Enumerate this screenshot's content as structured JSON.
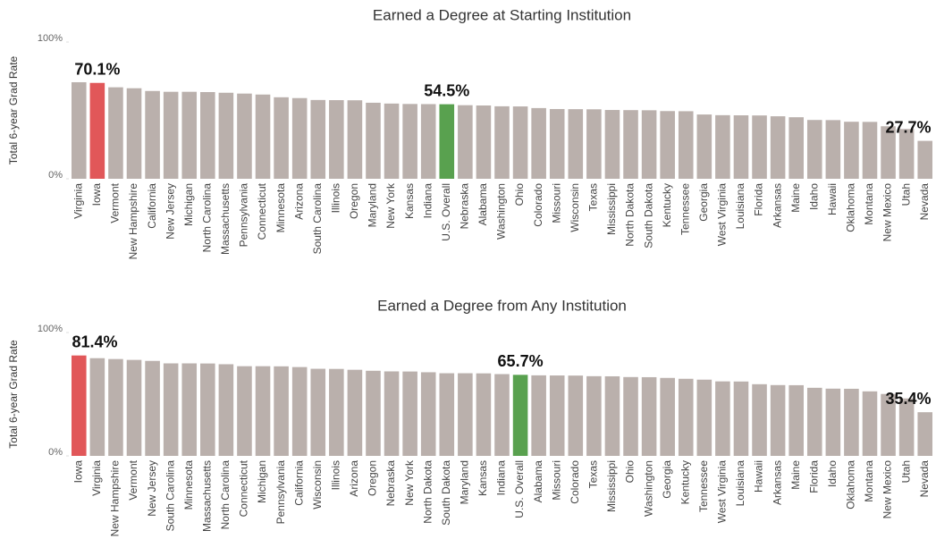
{
  "chart_data": [
    {
      "type": "bar",
      "title": "Earned a Degree at Starting Institution",
      "y_label": "Total 6-year Grad Rate",
      "categories": [
        "Virginia",
        "Iowa",
        "Vermont",
        "New Hampshire",
        "California",
        "New Jersey",
        "Michigan",
        "North Carolina",
        "Massachusetts",
        "Pennsylvania",
        "Connecticut",
        "Minnesota",
        "Arizona",
        "South Carolina",
        "Illinois",
        "Oregon",
        "Maryland",
        "New York",
        "Kansas",
        "Indiana",
        "U.S. Overall",
        "Nebraska",
        "Alabama",
        "Washington",
        "Ohio",
        "Colorado",
        "Missouri",
        "Wisconsin",
        "Texas",
        "Mississippi",
        "North Dakota",
        "South Dakota",
        "Kentucky",
        "Tennessee",
        "Georgia",
        "West Virginia",
        "Louisiana",
        "Florida",
        "Arkansas",
        "Maine",
        "Idaho",
        "Hawaii",
        "Oklahoma",
        "Montana",
        "New Mexico",
        "Utah",
        "Nevada"
      ],
      "values": [
        70.6,
        70.1,
        66.9,
        66.2,
        64.2,
        63.6,
        63.6,
        63.4,
        62.9,
        62.3,
        61.6,
        59.6,
        59.0,
        57.6,
        57.5,
        57.4,
        55.6,
        55.0,
        54.7,
        54.6,
        54.5,
        53.8,
        53.6,
        53.0,
        52.9,
        51.7,
        51.0,
        50.9,
        50.8,
        50.3,
        50.2,
        50.1,
        49.5,
        49.4,
        47.0,
        46.5,
        46.4,
        46.3,
        45.7,
        45.0,
        43.0,
        42.9,
        41.7,
        41.6,
        38.4,
        36.4,
        27.7
      ],
      "value_labels": [
        null,
        "70.1%",
        null,
        null,
        null,
        null,
        null,
        null,
        null,
        null,
        null,
        null,
        null,
        null,
        null,
        null,
        null,
        null,
        null,
        null,
        "54.5%",
        null,
        null,
        null,
        null,
        null,
        null,
        null,
        null,
        null,
        null,
        null,
        null,
        null,
        null,
        null,
        null,
        null,
        null,
        null,
        null,
        null,
        null,
        null,
        null,
        null,
        "27.7%"
      ],
      "color": "#bab0ac",
      "highlight_colors": {
        "Iowa": "#e15759",
        "U.S. Overall": "#59a14f"
      },
      "ylim": [
        0,
        100
      ],
      "yticks": [
        {
          "value": 0,
          "label": "0%"
        },
        {
          "value": 100,
          "label": "100%"
        }
      ]
    },
    {
      "type": "bar",
      "title": "Earned a Degree from Any Institution",
      "y_label": "Total 6-year Grad Rate",
      "categories": [
        "Iowa",
        "Virginia",
        "New Hampshire",
        "Vermont",
        "New Jersey",
        "South Carolina",
        "Minnesota",
        "Massachusetts",
        "North Carolina",
        "Connecticut",
        "Michigan",
        "Pennsylvania",
        "California",
        "Wisconsin",
        "Illinois",
        "Arizona",
        "Oregon",
        "Nebraska",
        "New York",
        "North Dakota",
        "South Dakota",
        "Maryland",
        "Kansas",
        "Indiana",
        "U.S. Overall",
        "Alabama",
        "Missouri",
        "Colorado",
        "Texas",
        "Mississippi",
        "Ohio",
        "Washington",
        "Georgia",
        "Kentucky",
        "Tennessee",
        "West Virginia",
        "Louisiana",
        "Hawaii",
        "Arkansas",
        "Maine",
        "Florida",
        "Idaho",
        "Oklahoma",
        "Montana",
        "New Mexico",
        "Utah",
        "Nevada"
      ],
      "values": [
        81.4,
        79.2,
        78.5,
        77.8,
        77.0,
        75.0,
        75.0,
        74.9,
        74.3,
        72.7,
        72.7,
        72.6,
        72.0,
        70.6,
        70.5,
        69.8,
        69.0,
        68.5,
        68.4,
        67.8,
        67.0,
        67.0,
        66.9,
        66.3,
        65.7,
        65.3,
        65.2,
        65.1,
        64.6,
        64.5,
        63.9,
        63.8,
        63.2,
        62.5,
        61.8,
        60.4,
        60.3,
        58.1,
        57.4,
        57.3,
        55.2,
        54.5,
        54.4,
        52.3,
        50.2,
        46.6,
        35.4
      ],
      "value_labels": [
        "81.4%",
        null,
        null,
        null,
        null,
        null,
        null,
        null,
        null,
        null,
        null,
        null,
        null,
        null,
        null,
        null,
        null,
        null,
        null,
        null,
        null,
        null,
        null,
        null,
        "65.7%",
        null,
        null,
        null,
        null,
        null,
        null,
        null,
        null,
        null,
        null,
        null,
        null,
        null,
        null,
        null,
        null,
        null,
        null,
        null,
        null,
        null,
        "35.4%"
      ],
      "color": "#bab0ac",
      "highlight_colors": {
        "Iowa": "#e15759",
        "U.S. Overall": "#59a14f"
      },
      "ylim": [
        0,
        100
      ],
      "yticks": [
        {
          "value": 0,
          "label": "0%"
        },
        {
          "value": 100,
          "label": "100%"
        }
      ]
    }
  ]
}
